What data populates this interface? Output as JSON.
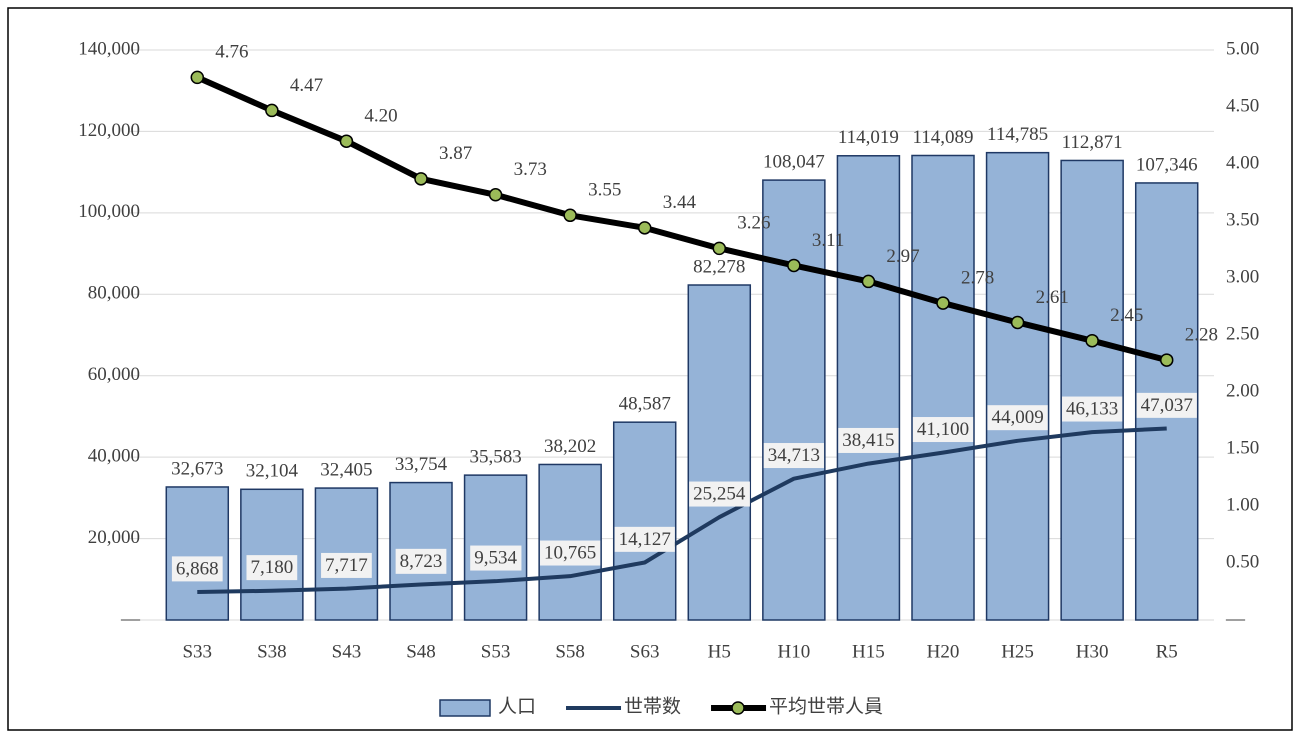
{
  "chart_data": {
    "type": "bar",
    "categories": [
      "S33",
      "S38",
      "S43",
      "S48",
      "S53",
      "S58",
      "S63",
      "H5",
      "H10",
      "H15",
      "H20",
      "H25",
      "H30",
      "R5"
    ],
    "series": [
      {
        "name": "人口",
        "type": "bar",
        "color": "#95b3d7",
        "edge": "#1f3864",
        "values": [
          32673,
          32104,
          32405,
          33754,
          35583,
          38202,
          48587,
          82278,
          108047,
          114019,
          114089,
          114785,
          112871,
          107346
        ],
        "value_labels": [
          "32,673",
          "32,104",
          "32,405",
          "33,754",
          "35,583",
          "38,202",
          "48,587",
          "82,278",
          "108,047",
          "114,019",
          "114,089",
          "114,785",
          "112,871",
          "107,346"
        ]
      },
      {
        "name": "世帯数",
        "type": "line",
        "color": "#1f3a5f",
        "values": [
          6868,
          7180,
          7717,
          8723,
          9534,
          10765,
          14127,
          25254,
          34713,
          38415,
          41100,
          44009,
          46133,
          47037
        ],
        "value_labels": [
          "6,868",
          "7,180",
          "7,717",
          "8,723",
          "9,534",
          "10,765",
          "14,127",
          "25,254",
          "34,713",
          "38,415",
          "41,100",
          "44,009",
          "46,133",
          "47,037"
        ]
      },
      {
        "name": "平均世帯人員",
        "type": "line",
        "axis": "y2",
        "color": "#000000",
        "marker_color": "#9bbb59",
        "values": [
          4.76,
          4.47,
          4.2,
          3.87,
          3.73,
          3.55,
          3.44,
          3.26,
          3.11,
          2.97,
          2.78,
          2.61,
          2.45,
          2.28
        ],
        "value_labels": [
          "4.76",
          "4.47",
          "4.20",
          "3.87",
          "3.73",
          "3.55",
          "3.44",
          "3.26",
          "3.11",
          "2.97",
          "2.78",
          "2.61",
          "2.45",
          "2.28"
        ]
      }
    ],
    "ylim": [
      0,
      140000
    ],
    "yticks": [
      {
        "value": 0,
        "label": "—"
      },
      {
        "value": 20000,
        "label": "20,000"
      },
      {
        "value": 40000,
        "label": "40,000"
      },
      {
        "value": 60000,
        "label": "60,000"
      },
      {
        "value": 80000,
        "label": "80,000"
      },
      {
        "value": 100000,
        "label": "100,000"
      },
      {
        "value": 120000,
        "label": "120,000"
      },
      {
        "value": 140000,
        "label": "140,000"
      }
    ],
    "y2lim": [
      0,
      5
    ],
    "y2ticks": [
      {
        "value": 0,
        "label": "—"
      },
      {
        "value": 0.5,
        "label": "0.50"
      },
      {
        "value": 1,
        "label": "1.00"
      },
      {
        "value": 1.5,
        "label": "1.50"
      },
      {
        "value": 2,
        "label": "2.00"
      },
      {
        "value": 2.5,
        "label": "2.50"
      },
      {
        "value": 3,
        "label": "3.00"
      },
      {
        "value": 3.5,
        "label": "3.50"
      },
      {
        "value": 4,
        "label": "4.00"
      },
      {
        "value": 4.5,
        "label": "4.50"
      },
      {
        "value": 5,
        "label": "5.00"
      }
    ],
    "grid": true,
    "legend": "bottom"
  }
}
